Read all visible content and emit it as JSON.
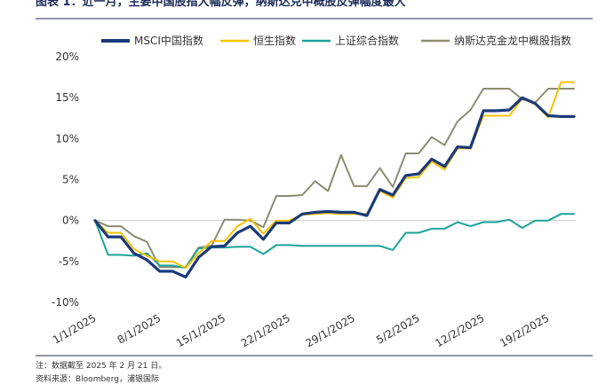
{
  "header": {
    "title": "图表 1：近一月，主要中国股指大幅反弹，纳斯达克中概股反弹幅度最大"
  },
  "footer": {
    "note": "注：数据截至 2025 年 2 月 21 日。",
    "source": "资料来源：Bloomberg，浦银国际"
  },
  "chart_data": {
    "type": "line",
    "x": [
      "1/1/2025",
      "2/1/2025",
      "3/1/2025",
      "6/1/2025",
      "7/1/2025",
      "8/1/2025",
      "9/1/2025",
      "10/1/2025",
      "13/1/2025",
      "14/1/2025",
      "15/1/2025",
      "16/1/2025",
      "17/1/2025",
      "20/1/2025",
      "21/1/2025",
      "22/1/2025",
      "23/1/2025",
      "24/1/2025",
      "27/1/2025",
      "28/1/2025",
      "29/1/2025",
      "30/1/2025",
      "31/1/2025",
      "3/2/2025",
      "4/2/2025",
      "5/2/2025",
      "6/2/2025",
      "7/2/2025",
      "10/2/2025",
      "11/2/2025",
      "12/2/2025",
      "13/2/2025",
      "14/2/2025",
      "17/2/2025",
      "18/2/2025",
      "19/2/2025",
      "20/2/2025",
      "21/2/2025"
    ],
    "xticks": [
      "1/1/2025",
      "8/1/2025",
      "15/1/2025",
      "22/1/2025",
      "29/1/2025",
      "5/2/2025",
      "12/2/2025",
      "19/2/2025"
    ],
    "ylim": [
      -10,
      20
    ],
    "yticks": [
      "-10%",
      "-5%",
      "0%",
      "5%",
      "10%",
      "15%",
      "20%"
    ],
    "series": [
      {
        "name": "MSCI中国指数",
        "color": "#1a3a7a",
        "width": 3.2,
        "values": [
          0,
          -2.0,
          -2.0,
          -4.0,
          -4.8,
          -6.2,
          -6.2,
          -6.9,
          -4.5,
          -3.2,
          -3.1,
          -1.5,
          -0.7,
          -2.3,
          -0.3,
          -0.3,
          0.8,
          1.0,
          1.1,
          1.0,
          1.0,
          0.6,
          3.8,
          3.1,
          5.5,
          5.7,
          7.5,
          6.6,
          9.0,
          8.9,
          13.4,
          13.4,
          13.5,
          15.0,
          14.3,
          12.8,
          12.7,
          12.7
        ]
      },
      {
        "name": "恒生指数",
        "color": "#f5c200",
        "width": 2,
        "values": [
          0,
          -1.5,
          -1.5,
          -3.5,
          -4.3,
          -5.0,
          -5.0,
          -5.8,
          -4.0,
          -2.5,
          -2.5,
          -0.7,
          0.2,
          -1.6,
          0.0,
          0.0,
          0.7,
          0.8,
          0.9,
          0.8,
          0.8,
          0.8,
          3.6,
          2.8,
          5.2,
          5.3,
          7.2,
          6.2,
          8.8,
          8.8,
          12.8,
          12.8,
          12.8,
          14.9,
          14.2,
          12.6,
          16.9,
          16.9
        ]
      },
      {
        "name": "上证综合指数",
        "color": "#1aa39a",
        "width": 2,
        "values": [
          0,
          -4.2,
          -4.2,
          -4.3,
          -4.0,
          -5.5,
          -5.5,
          -5.8,
          -3.4,
          -3.3,
          -3.3,
          -3.2,
          -3.2,
          -4.1,
          -3.0,
          -3.0,
          -3.1,
          -3.1,
          -3.1,
          -3.1,
          -3.1,
          -3.1,
          -3.1,
          -3.6,
          -1.5,
          -1.5,
          -1.0,
          -1.0,
          -0.2,
          -0.7,
          -0.2,
          -0.2,
          0.1,
          -0.9,
          0.0,
          0.0,
          0.8,
          0.8
        ]
      },
      {
        "name": "纳斯达克金龙中概股指数",
        "color": "#8c8c72",
        "width": 2,
        "values": [
          0,
          -0.7,
          -0.7,
          -1.9,
          -2.6,
          -5.7,
          -5.7,
          -5.7,
          -3.3,
          -3.1,
          0.1,
          0.1,
          0.0,
          -0.8,
          3.0,
          3.0,
          3.1,
          4.8,
          3.6,
          8.0,
          4.2,
          4.2,
          6.4,
          4.1,
          8.2,
          8.2,
          10.2,
          9.2,
          12.1,
          13.5,
          16.1,
          16.1,
          16.1,
          14.8,
          14.4,
          16.1,
          16.1,
          16.1
        ]
      }
    ],
    "legend": "top"
  }
}
